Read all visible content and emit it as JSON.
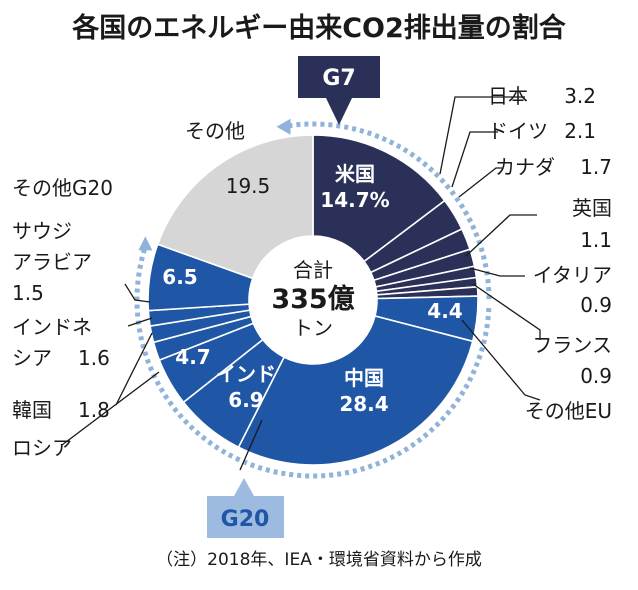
{
  "chart_data": {
    "type": "pie",
    "title": "各国のエネルギー由来CO2排出量の割合",
    "center_label": {
      "line1": "合計",
      "line2": "335億",
      "line3": "トン"
    },
    "unit": "%",
    "slices": [
      {
        "label": "米国",
        "value": 14.7,
        "display": "14.7%",
        "group": "G7"
      },
      {
        "label": "日本",
        "value": 3.2,
        "display": "3.2",
        "group": "G7"
      },
      {
        "label": "ドイツ",
        "value": 2.1,
        "display": "2.1",
        "group": "G7"
      },
      {
        "label": "カナダ",
        "value": 1.7,
        "display": "1.7",
        "group": "G7"
      },
      {
        "label": "英国",
        "value": 1.1,
        "display": "1.1",
        "group": "G7"
      },
      {
        "label": "イタリア",
        "value": 0.9,
        "display": "0.9",
        "group": "G7"
      },
      {
        "label": "フランス",
        "value": 0.9,
        "display": "0.9",
        "group": "G7"
      },
      {
        "label": "その他EU",
        "value": 4.4,
        "display": "4.4",
        "group": "G20"
      },
      {
        "label": "中国",
        "value": 28.4,
        "display": "28.4",
        "group": "G20"
      },
      {
        "label": "インド",
        "value": 6.9,
        "display": "6.9",
        "group": "G20"
      },
      {
        "label": "ロシア",
        "value": 4.7,
        "display": "4.7",
        "group": "G20"
      },
      {
        "label": "韓国",
        "value": 1.8,
        "display": "1.8",
        "group": "G20"
      },
      {
        "label": "インドネシア",
        "value": 1.6,
        "display": "1.6",
        "group": "G20"
      },
      {
        "label": "サウジアラビア",
        "value": 1.5,
        "display": "1.5",
        "group": "G20"
      },
      {
        "label": "その他G20",
        "value": 6.5,
        "display": "6.5",
        "group": "G20"
      },
      {
        "label": "その他",
        "value": 19.5,
        "display": "19.5",
        "group": "other"
      }
    ],
    "groups": [
      {
        "name": "G7",
        "color": "#2a3058"
      },
      {
        "name": "G20",
        "color": "#1f56a6"
      }
    ],
    "colors": {
      "g7": "#2a3058",
      "g20": "#1f56a6",
      "other": "#d6d6d6",
      "ring": "#8fb3d9",
      "badge_g20": "#9dbbe0"
    },
    "note": "（注）2018年、IEA・環境省資料から作成"
  }
}
